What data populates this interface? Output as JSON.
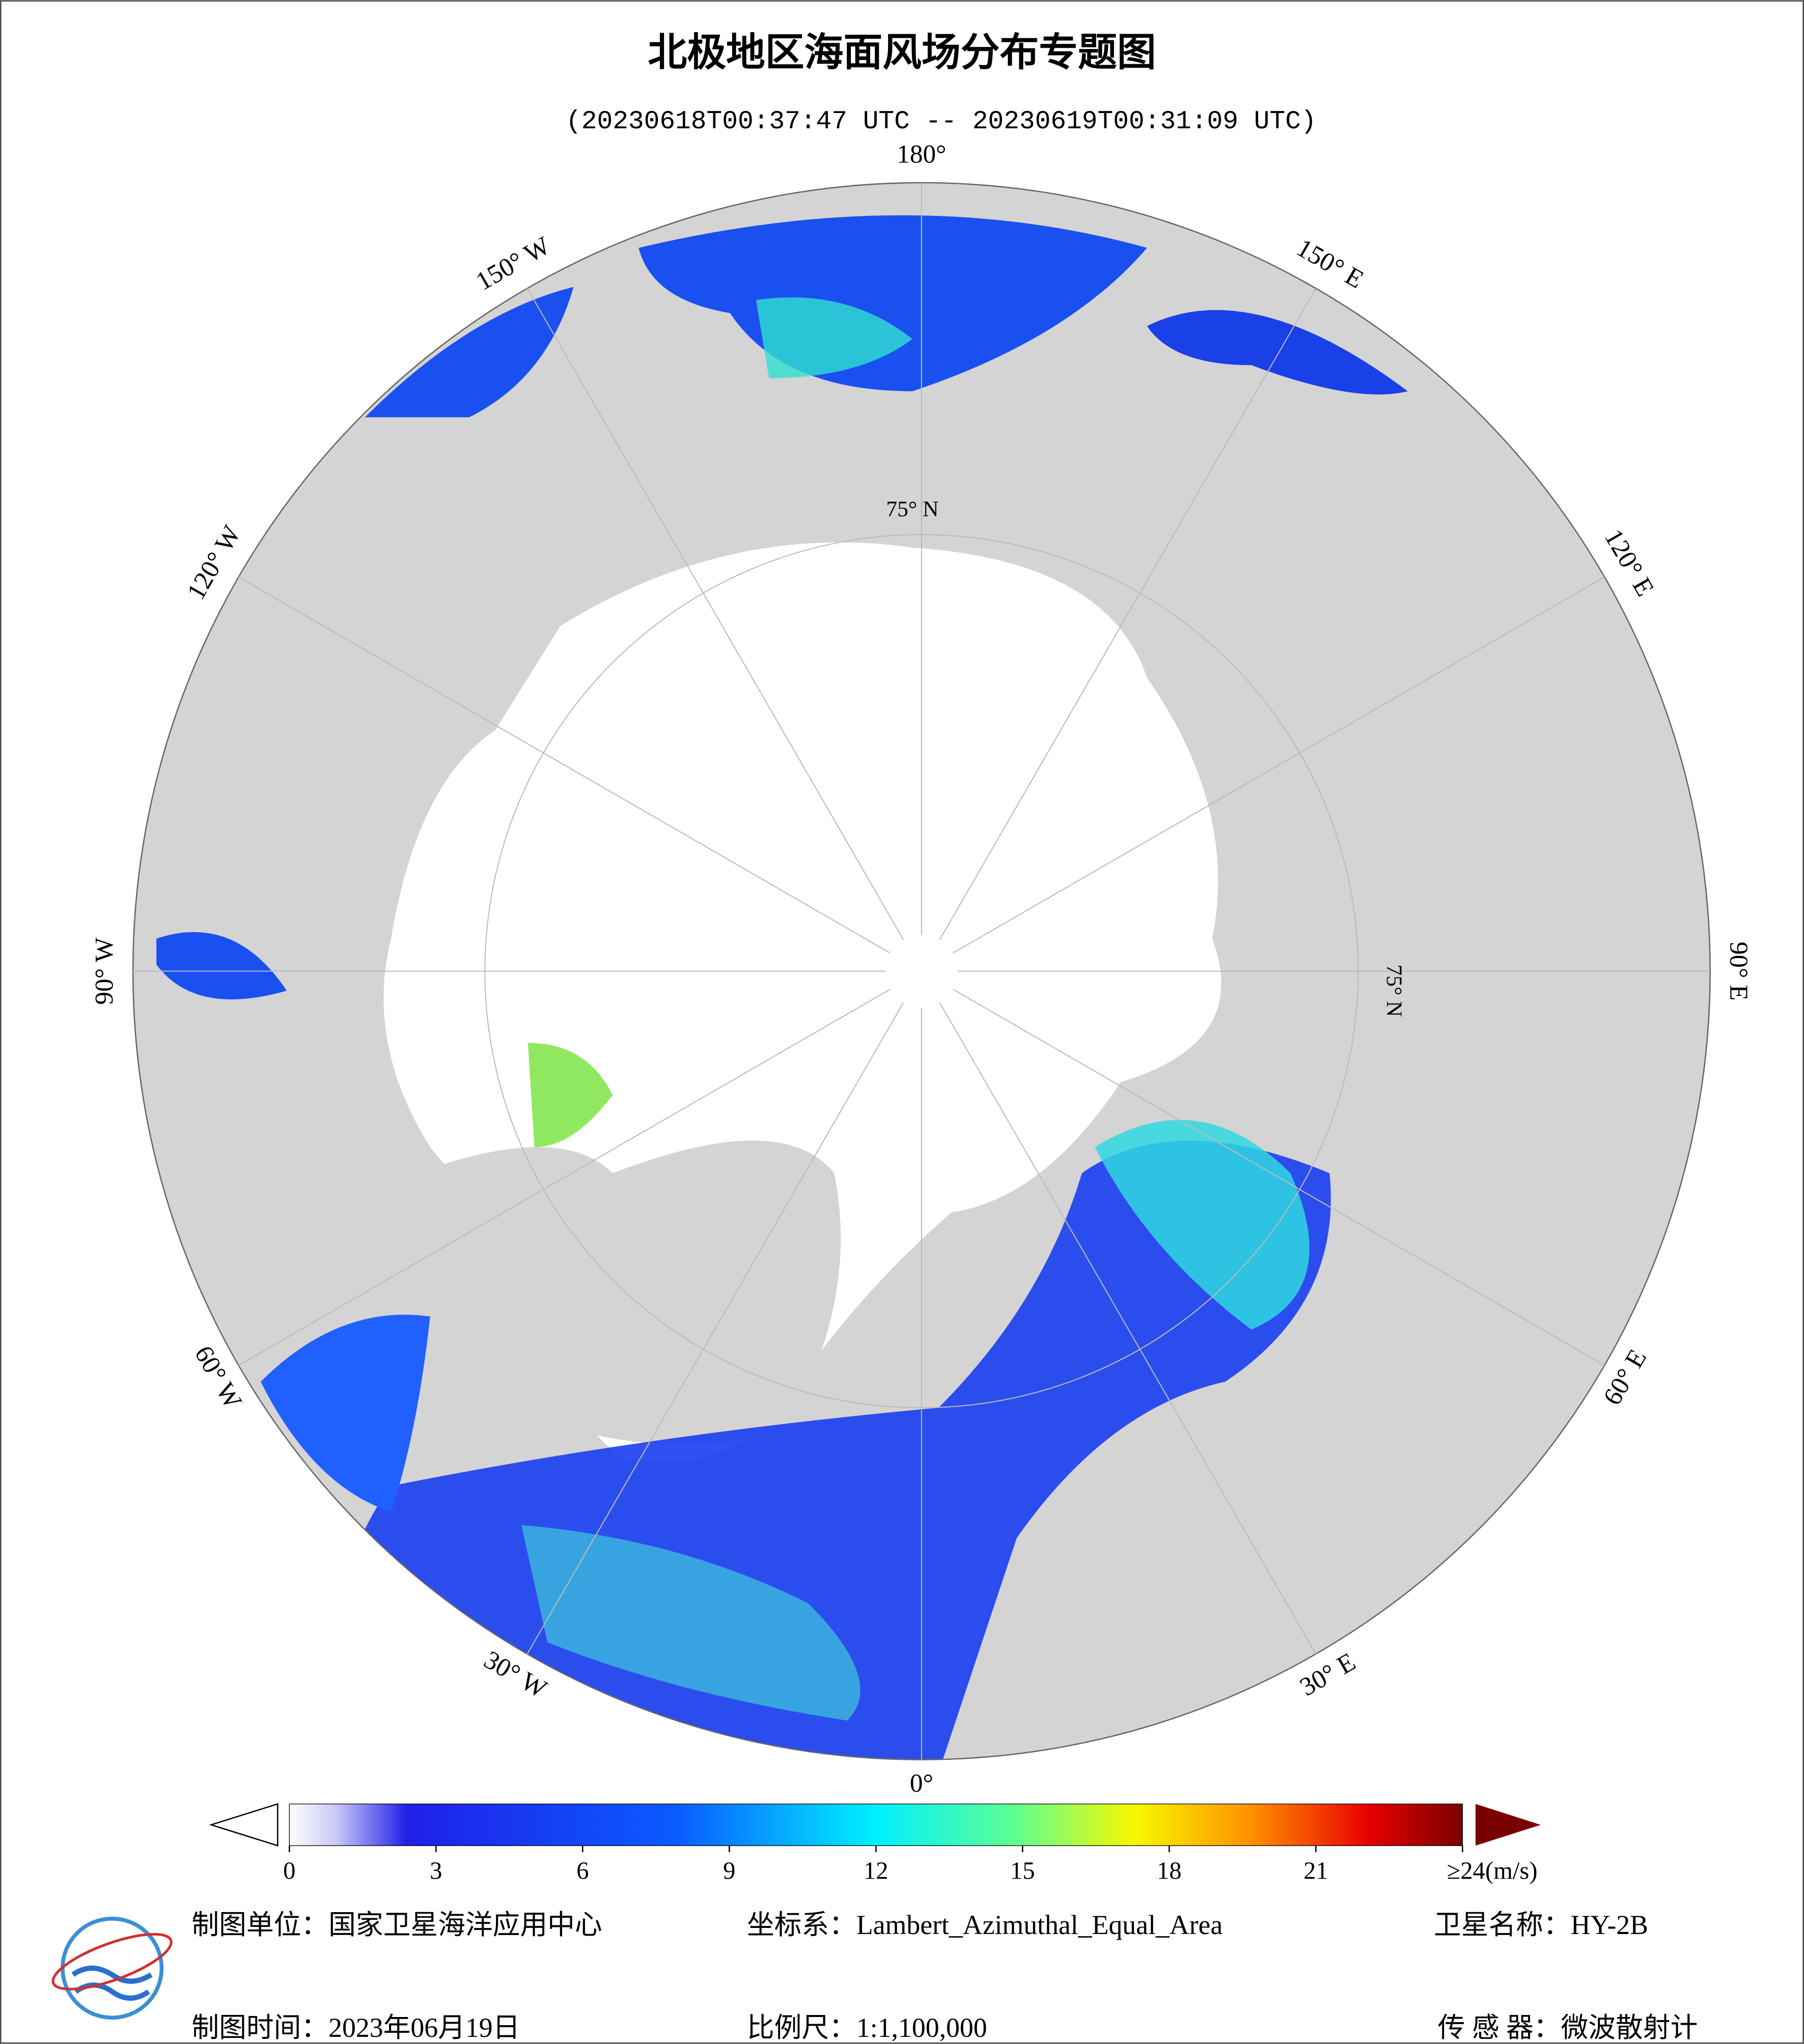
{
  "title": "北极地区海面风场分布专题图",
  "subtitle": "(20230618T00:37:47 UTC -- 20230619T00:31:09 UTC)",
  "graticule": {
    "longitude_labels": [
      {
        "lon": 180,
        "label": "180°"
      },
      {
        "lon": 150,
        "label": "150° E"
      },
      {
        "lon": 120,
        "label": "120° E"
      },
      {
        "lon": 90,
        "label": "90° E"
      },
      {
        "lon": 60,
        "label": "60° E"
      },
      {
        "lon": 30,
        "label": "30° E"
      },
      {
        "lon": 0,
        "label": "0°"
      },
      {
        "lon": -30,
        "label": "30° W"
      },
      {
        "lon": -60,
        "label": "60° W"
      },
      {
        "lon": -90,
        "label": "90° W"
      },
      {
        "lon": -120,
        "label": "120° W"
      },
      {
        "lon": -150,
        "label": "150° W"
      }
    ],
    "latitude_labels": [
      "75° N",
      "75° N"
    ]
  },
  "colorbar": {
    "ticks": [
      0,
      3,
      6,
      9,
      12,
      15,
      18,
      21,
      {
        "value": 24,
        "label": "≥24(m/s)"
      }
    ],
    "lim": [
      0,
      24
    ]
  },
  "footer": {
    "unit": "制图单位：国家卫星海洋应用中心",
    "projection": "坐标系：Lambert_Azimuthal_Equal_Area",
    "satellite": "卫星名称：HY-2B",
    "date": "制图时间：2023年06月19日",
    "scale": "比例尺：1:1,100,000",
    "sensor": "传 感 器：微波散射计"
  }
}
